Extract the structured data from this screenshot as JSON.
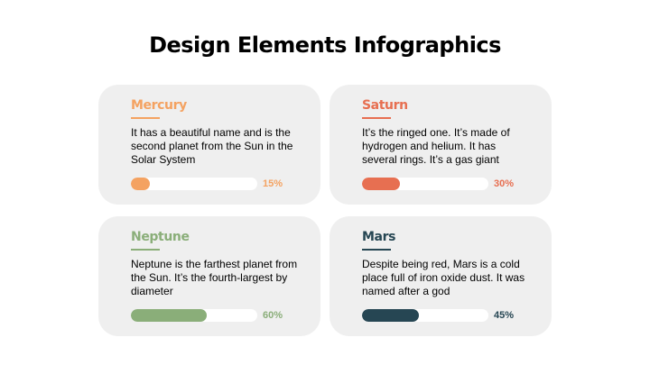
{
  "title": "Design Elements Infographics",
  "cards": [
    {
      "name": "Mercury",
      "description": "It has a beautiful name and is the second planet from the Sun in the Solar System",
      "percent": 15,
      "percent_label": "15%",
      "color": "#f4a261"
    },
    {
      "name": "Saturn",
      "description": "It’s the ringed one. It’s made of hydrogen and helium. It has several rings. It’s a gas giant",
      "percent": 30,
      "percent_label": "30%",
      "color": "#e76f51"
    },
    {
      "name": "Neptune",
      "description": "Neptune is the farthest planet from the Sun. It’s the fourth-largest by diameter",
      "percent": 60,
      "percent_label": "60%",
      "color": "#8aae79"
    },
    {
      "name": "Mars",
      "description": "Despite being red, Mars is a cold place full of iron oxide dust. It was named after a god",
      "percent": 45,
      "percent_label": "45%",
      "color": "#264653"
    }
  ]
}
